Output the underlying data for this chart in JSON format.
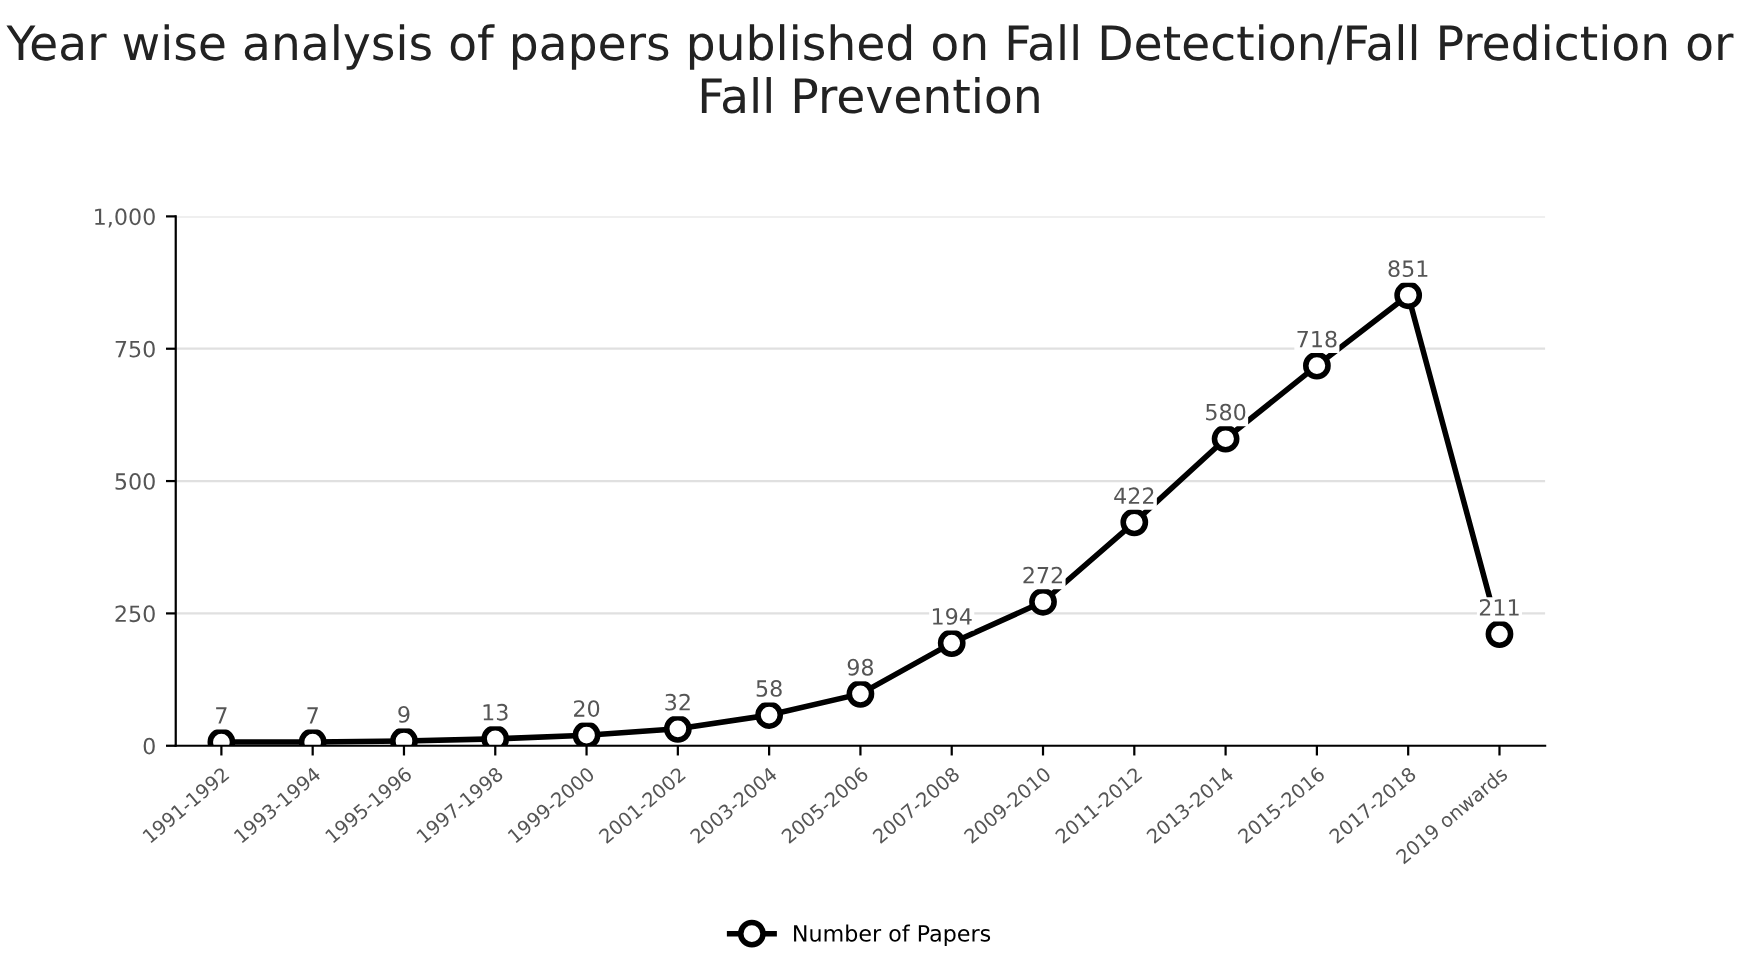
{
  "chart_data": {
    "type": "line",
    "title": "Year wise analysis of papers published on Fall Detection/Fall Prediction or Fall Prevention",
    "categories": [
      "1991-1992",
      "1993-1994",
      "1995-1996",
      "1997-1998",
      "1999-2000",
      "2001-2002",
      "2003-2004",
      "2005-2006",
      "2007-2008",
      "2009-2010",
      "2011-2012",
      "2013-2014",
      "2015-2016",
      "2017-2018",
      "2019 onwards"
    ],
    "series": [
      {
        "name": "Number of Papers",
        "color": "#000000",
        "values": [
          7,
          7,
          9,
          13,
          20,
          32,
          58,
          98,
          194,
          272,
          422,
          580,
          718,
          851,
          211
        ]
      }
    ],
    "ylim": [
      0,
      1000
    ],
    "yticks": [
      0,
      {
        "value": 250,
        "label": "250"
      },
      {
        "value": 500,
        "label": "500"
      },
      {
        "value": 750,
        "label": "750"
      },
      {
        "value": 1000,
        "label": "1,000"
      }
    ],
    "grid": "y",
    "legend": "bottom",
    "marker": "circle",
    "line_style": "solid",
    "data_labels": true
  }
}
